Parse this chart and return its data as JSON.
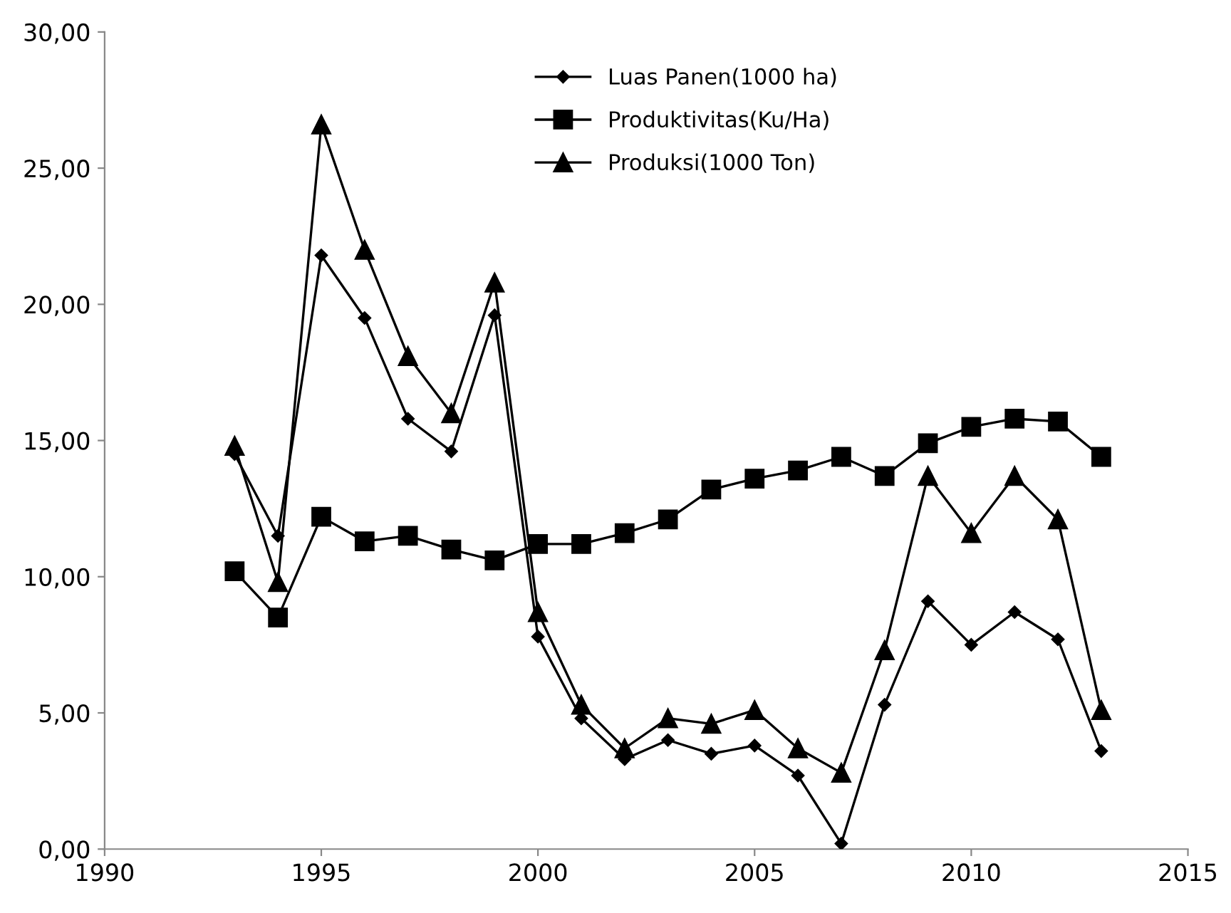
{
  "chart_data": {
    "type": "line",
    "x": [
      1993,
      1994,
      1995,
      1996,
      1997,
      1998,
      1999,
      2000,
      2001,
      2002,
      2003,
      2004,
      2005,
      2006,
      2007,
      2008,
      2009,
      2010,
      2011,
      2012,
      2013
    ],
    "series": [
      {
        "name": "Luas Panen(1000 ha)",
        "color": "#000000",
        "marker": "diamond",
        "values": [
          14.5,
          11.5,
          21.8,
          19.5,
          15.8,
          14.6,
          19.6,
          7.8,
          4.8,
          3.3,
          4.0,
          3.5,
          3.8,
          2.7,
          0.2,
          5.3,
          9.1,
          7.5,
          8.7,
          7.7,
          3.6
        ]
      },
      {
        "name": "Produktivitas(Ku/Ha)",
        "color": "#000000",
        "marker": "square",
        "values": [
          10.2,
          8.5,
          12.2,
          11.3,
          11.5,
          11.0,
          10.6,
          11.2,
          11.2,
          11.6,
          12.1,
          13.2,
          13.6,
          13.9,
          14.4,
          13.7,
          14.9,
          15.5,
          15.8,
          15.7,
          14.4
        ]
      },
      {
        "name": "Produksi(1000 Ton)",
        "color": "#000000",
        "marker": "triangle",
        "values": [
          14.8,
          9.8,
          26.6,
          22.0,
          18.1,
          16.0,
          20.8,
          8.7,
          5.3,
          3.7,
          4.8,
          4.6,
          5.1,
          3.7,
          2.8,
          7.3,
          13.7,
          11.6,
          13.7,
          12.1,
          5.1
        ]
      }
    ],
    "xlim": [
      1990,
      2015
    ],
    "xticks": [
      1990,
      1995,
      2000,
      2005,
      2010,
      2015
    ],
    "ylim": [
      0,
      30
    ],
    "yticks": [
      {
        "value": 0,
        "label": "0,00"
      },
      {
        "value": 5,
        "label": "5,00"
      },
      {
        "value": 10,
        "label": "10,00"
      },
      {
        "value": 15,
        "label": "15,00"
      },
      {
        "value": 20,
        "label": "20,00"
      },
      {
        "value": 25,
        "label": "25,00"
      },
      {
        "value": 30,
        "label": "30,00"
      }
    ],
    "grid": false,
    "legend": "top",
    "line_style": "solid"
  }
}
